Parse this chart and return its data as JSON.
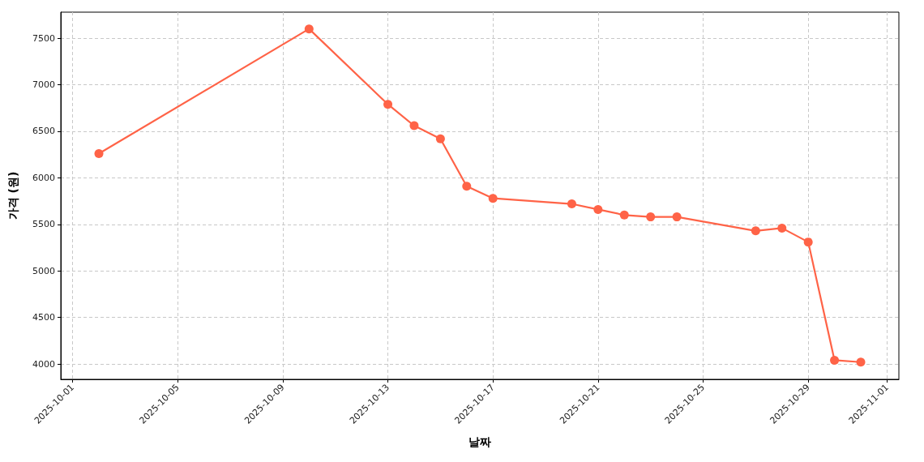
{
  "chart_data": {
    "type": "line",
    "xlabel": "날짜",
    "ylabel": "가격 (원)",
    "x": [
      "2025-10-02",
      "2025-10-10",
      "2025-10-13",
      "2025-10-14",
      "2025-10-15",
      "2025-10-16",
      "2025-10-17",
      "2025-10-20",
      "2025-10-21",
      "2025-10-22",
      "2025-10-23",
      "2025-10-24",
      "2025-10-27",
      "2025-10-28",
      "2025-10-29",
      "2025-10-30",
      "2025-10-31"
    ],
    "values": [
      6260,
      7600,
      6790,
      6560,
      6420,
      5910,
      5780,
      5720,
      5660,
      5600,
      5580,
      5580,
      5430,
      5460,
      5310,
      4040,
      4020
    ],
    "color": "#ff6347",
    "xlim": [
      "2025-09-30T13:12",
      "2025-11-01T10:48"
    ],
    "xticks": [
      "2025-10-01",
      "2025-10-05",
      "2025-10-09",
      "2025-10-13",
      "2025-10-17",
      "2025-10-21",
      "2025-10-25",
      "2025-10-29",
      "2025-11-01"
    ],
    "ylim": [
      3835,
      7780
    ],
    "yticks": [
      4000,
      4500,
      5000,
      5500,
      6000,
      6500,
      7000,
      7500
    ],
    "grid": true,
    "marker": "circle",
    "line_style": "solid"
  }
}
